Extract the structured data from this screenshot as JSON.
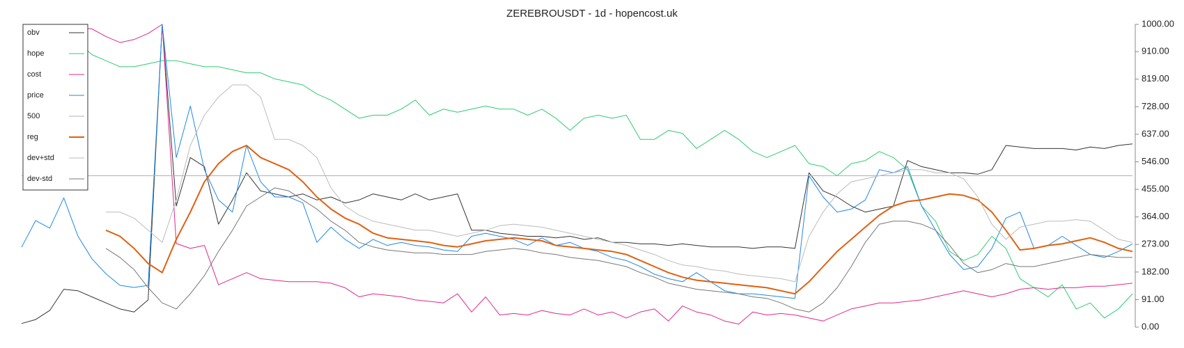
{
  "chart_data": {
    "type": "line",
    "title": "ZEREBROUSDT - 1d - hopencost.uk",
    "ylim": [
      0,
      1000
    ],
    "yticks": [
      {
        "value": 0,
        "label": "0.00"
      },
      {
        "value": 91,
        "label": "91.00"
      },
      {
        "value": 182,
        "label": "182.00"
      },
      {
        "value": 273,
        "label": "273.00"
      },
      {
        "value": 364,
        "label": "364.00"
      },
      {
        "value": 455,
        "label": "455.00"
      },
      {
        "value": 546,
        "label": "546.00"
      },
      {
        "value": 637,
        "label": "637.00"
      },
      {
        "value": 728,
        "label": "728.00"
      },
      {
        "value": 819,
        "label": "819.00"
      },
      {
        "value": 910,
        "label": "910.00"
      },
      {
        "value": 1000,
        "label": "1000.00"
      }
    ],
    "legend": "upper-left",
    "series": [
      {
        "name": "obv",
        "color": "#333333",
        "width": 1,
        "values": [
          12,
          25,
          55,
          125,
          120,
          100,
          80,
          60,
          50,
          90,
          1000,
          400,
          560,
          530,
          340,
          420,
          510,
          450,
          440,
          430,
          440,
          420,
          430,
          410,
          420,
          440,
          430,
          420,
          440,
          420,
          430,
          440,
          320,
          320,
          310,
          305,
          300,
          300,
          295,
          300,
          290,
          295,
          280,
          280,
          275,
          275,
          270,
          275,
          270,
          265,
          265,
          265,
          260,
          265,
          265,
          260,
          510,
          450,
          430,
          400,
          380,
          390,
          400,
          550,
          530,
          520,
          510,
          510,
          505,
          520,
          600,
          595,
          590,
          590,
          590,
          585,
          595,
          590,
          600,
          605
        ]
      },
      {
        "name": "hope",
        "color": "#2ecc71",
        "width": 1,
        "values": [
          null,
          null,
          null,
          null,
          942,
          900,
          880,
          860,
          860,
          870,
          880,
          880,
          870,
          860,
          860,
          850,
          840,
          840,
          820,
          810,
          800,
          770,
          750,
          720,
          690,
          700,
          700,
          720,
          750,
          700,
          720,
          710,
          720,
          730,
          720,
          720,
          700,
          720,
          690,
          650,
          690,
          700,
          690,
          700,
          620,
          620,
          650,
          640,
          590,
          620,
          650,
          620,
          580,
          560,
          580,
          600,
          540,
          530,
          500,
          540,
          550,
          580,
          560,
          520,
          400,
          350,
          250,
          220,
          240,
          300,
          260,
          160,
          130,
          100,
          140,
          60,
          80,
          30,
          60,
          110
        ]
      },
      {
        "name": "cost",
        "color": "#e0288a",
        "width": 1,
        "values": [
          null,
          null,
          null,
          null,
          990,
          985,
          960,
          940,
          950,
          970,
          1000,
          276,
          260,
          270,
          140,
          160,
          180,
          160,
          155,
          150,
          150,
          150,
          145,
          130,
          100,
          110,
          105,
          100,
          90,
          85,
          80,
          110,
          50,
          100,
          40,
          45,
          40,
          55,
          45,
          40,
          60,
          40,
          50,
          30,
          50,
          60,
          20,
          70,
          50,
          40,
          20,
          10,
          50,
          40,
          45,
          40,
          30,
          20,
          40,
          60,
          70,
          80,
          80,
          85,
          90,
          100,
          110,
          120,
          110,
          100,
          110,
          125,
          130,
          125,
          130,
          130,
          135,
          135,
          140,
          145
        ]
      },
      {
        "name": "price",
        "color": "#1e88e5",
        "width": 1,
        "values": [
          264,
          352,
          327,
          427,
          301,
          226,
          176,
          138,
          131,
          138,
          1000,
          560,
          730,
          520,
          420,
          380,
          600,
          480,
          430,
          430,
          410,
          280,
          330,
          290,
          260,
          290,
          270,
          280,
          270,
          265,
          255,
          250,
          300,
          310,
          300,
          290,
          270,
          295,
          270,
          280,
          260,
          250,
          230,
          220,
          200,
          175,
          160,
          150,
          180,
          150,
          120,
          110,
          110,
          105,
          100,
          95,
          500,
          430,
          380,
          390,
          420,
          520,
          510,
          530,
          400,
          320,
          240,
          190,
          200,
          260,
          360,
          380,
          260,
          270,
          300,
          270,
          240,
          230,
          250,
          275
        ]
      },
      {
        "name": "500",
        "color": "#b0b0b0",
        "width": 1,
        "values": [
          500,
          500,
          500,
          500,
          500,
          500,
          500,
          500,
          500,
          500,
          500,
          500,
          500,
          500,
          500,
          500,
          500,
          500,
          500,
          500,
          500,
          500,
          500,
          500,
          500,
          500,
          500,
          500,
          500,
          500,
          500,
          500,
          500,
          500,
          500,
          500,
          500,
          500,
          500,
          500,
          500,
          500,
          500,
          500,
          500,
          500,
          500,
          500,
          500,
          500,
          500,
          500,
          500,
          500,
          500,
          500,
          500,
          500,
          500,
          500,
          500,
          500,
          500,
          500,
          500,
          500,
          500,
          500,
          500,
          500,
          500,
          500,
          500,
          500,
          500,
          500,
          500,
          500,
          500,
          500
        ]
      },
      {
        "name": "reg",
        "color": "#e0600f",
        "width": 2,
        "values": [
          null,
          null,
          null,
          null,
          null,
          null,
          320,
          300,
          260,
          210,
          180,
          290,
          380,
          480,
          540,
          580,
          600,
          560,
          540,
          520,
          480,
          430,
          390,
          360,
          340,
          310,
          295,
          290,
          285,
          280,
          270,
          265,
          275,
          285,
          290,
          295,
          290,
          285,
          270,
          265,
          260,
          255,
          250,
          240,
          220,
          200,
          180,
          165,
          155,
          150,
          145,
          140,
          135,
          130,
          120,
          110,
          150,
          200,
          250,
          290,
          330,
          370,
          400,
          415,
          420,
          430,
          440,
          435,
          420,
          380,
          320,
          255,
          260,
          270,
          275,
          285,
          295,
          280,
          260,
          250
        ]
      },
      {
        "name": "dev+std",
        "color": "#bbbbbb",
        "width": 1,
        "values": [
          null,
          null,
          null,
          null,
          null,
          null,
          380,
          380,
          360,
          320,
          280,
          420,
          600,
          700,
          760,
          800,
          800,
          760,
          620,
          620,
          600,
          560,
          460,
          400,
          370,
          350,
          340,
          330,
          320,
          320,
          310,
          300,
          310,
          320,
          335,
          340,
          335,
          330,
          320,
          310,
          300,
          290,
          280,
          270,
          255,
          240,
          220,
          205,
          200,
          190,
          185,
          175,
          170,
          165,
          160,
          150,
          300,
          380,
          440,
          480,
          490,
          500,
          510,
          520,
          520,
          510,
          510,
          490,
          430,
          340,
          290,
          330,
          340,
          350,
          350,
          355,
          350,
          320,
          290,
          280
        ]
      },
      {
        "name": "dev-std",
        "color": "#777777",
        "width": 1,
        "values": [
          null,
          null,
          null,
          null,
          null,
          null,
          260,
          230,
          190,
          130,
          80,
          60,
          110,
          170,
          250,
          320,
          400,
          430,
          460,
          450,
          420,
          390,
          350,
          320,
          280,
          265,
          255,
          250,
          245,
          245,
          240,
          240,
          240,
          250,
          255,
          260,
          255,
          245,
          240,
          230,
          225,
          220,
          210,
          200,
          180,
          165,
          145,
          135,
          125,
          120,
          115,
          110,
          100,
          95,
          80,
          60,
          50,
          80,
          130,
          200,
          280,
          340,
          350,
          350,
          340,
          320,
          270,
          210,
          180,
          190,
          210,
          200,
          200,
          210,
          220,
          230,
          240,
          235,
          230,
          230
        ]
      }
    ]
  }
}
